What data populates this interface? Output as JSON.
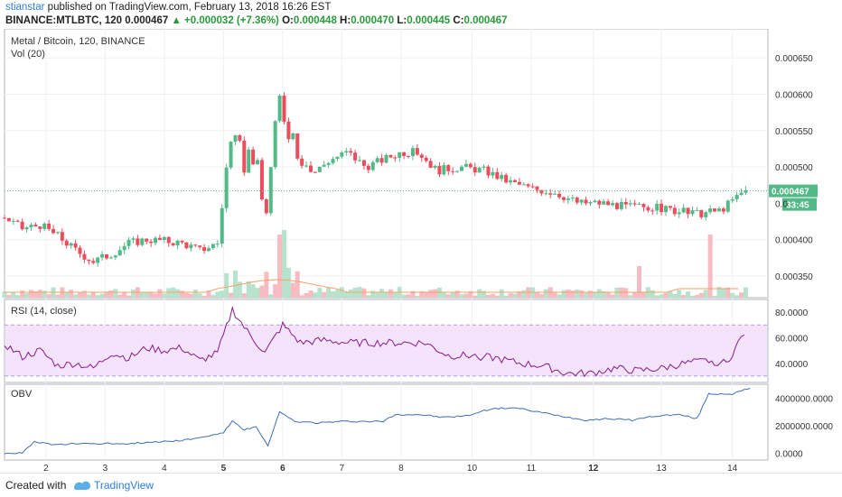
{
  "header": {
    "user": "stianstar",
    "published_text": "published on TradingView.com, February 13, 2018 16:26 EST",
    "symbol_line": "BINANCE:MTLBTC, 120",
    "last": "0.000467",
    "change": "+0.000032 (+7.36%)",
    "o_label": "O:",
    "o_val": "0.000448",
    "h_label": "H:",
    "h_val": "0.000470",
    "l_label": "L:",
    "l_val": "0.000445",
    "c_label": "C:",
    "c_val": "0.000467"
  },
  "main_panel": {
    "title": "Metal / Bitcoin, 120, BINANCE",
    "vol_label": "Vol (20)",
    "price_ticks": [
      "0.000650",
      "0.000600",
      "0.000550",
      "0.000500",
      "0.000400",
      "0.000350"
    ],
    "price_tag": "0.000467",
    "time_tag": "33:45"
  },
  "rsi_panel": {
    "label": "RSI (14, close)",
    "ticks": [
      "80.0000",
      "60.0000",
      "40.0000"
    ]
  },
  "obv_panel": {
    "label": "OBV",
    "ticks": [
      "4000000.0000",
      "2000000.0000",
      "0.0000"
    ]
  },
  "x_axis": {
    "ticks": [
      "2",
      "3",
      "4",
      "5",
      "6",
      "7",
      "8",
      "10",
      "11",
      "12",
      "12",
      "13",
      "14"
    ]
  },
  "footer": {
    "created_with": "Created with",
    "brand": "TradingView"
  },
  "colors": {
    "up": "#53b987",
    "down": "#eb4d5c",
    "rsi_line": "#8b1a8b",
    "rsi_band": "#f3e3fb",
    "obv_line": "#3d6fb4",
    "ma_line": "#f4a26b",
    "price_tag": "#53b987"
  },
  "chart_data": {
    "type": "candlestick",
    "x_domain": [
      1.3,
      14.2
    ],
    "price_range": [
      0.00032,
      0.00069
    ],
    "price_close_approx": [
      [
        1.3,
        0.00043
      ],
      [
        1.6,
        0.000415
      ],
      [
        1.9,
        0.00042
      ],
      [
        2.2,
        0.000405
      ],
      [
        2.5,
        0.000385
      ],
      [
        2.8,
        0.00037
      ],
      [
        3.1,
        0.00038
      ],
      [
        3.4,
        0.000395
      ],
      [
        3.7,
        0.0004
      ],
      [
        4.0,
        0.000398
      ],
      [
        4.3,
        0.000395
      ],
      [
        4.6,
        0.000385
      ],
      [
        4.9,
        0.000395
      ],
      [
        5.1,
        0.00053
      ],
      [
        5.3,
        0.00051
      ],
      [
        5.5,
        0.00052
      ],
      [
        5.7,
        0.00043
      ],
      [
        5.95,
        0.00059
      ],
      [
        6.2,
        0.00054
      ],
      [
        6.5,
        0.00049
      ],
      [
        6.8,
        0.00051
      ],
      [
        7.1,
        0.00052
      ],
      [
        7.4,
        0.0005
      ],
      [
        7.7,
        0.00051
      ],
      [
        8.0,
        0.00052
      ],
      [
        8.3,
        0.00052
      ],
      [
        8.6,
        0.000495
      ],
      [
        9.0,
        0.0005
      ],
      [
        9.4,
        0.000495
      ],
      [
        9.8,
        0.00048
      ],
      [
        10.2,
        0.00047
      ],
      [
        10.6,
        0.000465
      ],
      [
        11.0,
        0.00045
      ],
      [
        11.4,
        0.00045
      ],
      [
        11.8,
        0.000445
      ],
      [
        12.2,
        0.000445
      ],
      [
        12.6,
        0.00044
      ],
      [
        13.0,
        0.000435
      ],
      [
        13.4,
        0.00044
      ],
      [
        13.8,
        0.000467
      ]
    ],
    "rsi_range": [
      25,
      90
    ],
    "rsi_approx": [
      [
        1.3,
        55
      ],
      [
        1.6,
        45
      ],
      [
        1.9,
        50
      ],
      [
        2.2,
        38
      ],
      [
        2.5,
        40
      ],
      [
        2.8,
        36
      ],
      [
        3.1,
        48
      ],
      [
        3.4,
        44
      ],
      [
        3.7,
        52
      ],
      [
        4.0,
        50
      ],
      [
        4.3,
        52
      ],
      [
        4.6,
        42
      ],
      [
        4.9,
        48
      ],
      [
        5.15,
        82
      ],
      [
        5.4,
        65
      ],
      [
        5.7,
        48
      ],
      [
        6.0,
        70
      ],
      [
        6.3,
        56
      ],
      [
        6.7,
        58
      ],
      [
        7.1,
        56
      ],
      [
        7.5,
        56
      ],
      [
        8.0,
        56
      ],
      [
        8.4,
        56
      ],
      [
        8.8,
        46
      ],
      [
        9.2,
        46
      ],
      [
        9.6,
        44
      ],
      [
        10.0,
        40
      ],
      [
        10.4,
        38
      ],
      [
        10.8,
        32
      ],
      [
        11.2,
        32
      ],
      [
        11.6,
        36
      ],
      [
        12.0,
        34
      ],
      [
        12.4,
        36
      ],
      [
        12.8,
        40
      ],
      [
        13.2,
        42
      ],
      [
        13.5,
        40
      ],
      [
        13.8,
        64
      ]
    ],
    "obv_range": [
      -500000,
      5000000
    ],
    "obv_approx": [
      [
        1.3,
        0
      ],
      [
        1.6,
        0
      ],
      [
        1.8,
        800000
      ],
      [
        2.2,
        600000
      ],
      [
        2.6,
        700000
      ],
      [
        3.0,
        700000
      ],
      [
        3.4,
        700000
      ],
      [
        3.8,
        800000
      ],
      [
        4.2,
        900000
      ],
      [
        4.6,
        1100000
      ],
      [
        5.0,
        1500000
      ],
      [
        5.15,
        2300000
      ],
      [
        5.35,
        1700000
      ],
      [
        5.55,
        1900000
      ],
      [
        5.75,
        500000
      ],
      [
        5.95,
        3000000
      ],
      [
        6.2,
        2300000
      ],
      [
        6.6,
        2200000
      ],
      [
        7.0,
        2300000
      ],
      [
        7.4,
        2300000
      ],
      [
        7.7,
        2300000
      ],
      [
        7.9,
        2800000
      ],
      [
        8.3,
        2800000
      ],
      [
        8.7,
        2600000
      ],
      [
        9.1,
        2700000
      ],
      [
        9.5,
        3200000
      ],
      [
        9.9,
        3300000
      ],
      [
        10.3,
        3000000
      ],
      [
        10.7,
        2700000
      ],
      [
        11.1,
        2400000
      ],
      [
        11.5,
        2500000
      ],
      [
        11.9,
        2400000
      ],
      [
        12.3,
        2700000
      ],
      [
        12.7,
        2800000
      ],
      [
        13.0,
        2500000
      ],
      [
        13.2,
        4300000
      ],
      [
        13.6,
        4300000
      ],
      [
        13.9,
        4700000
      ]
    ]
  }
}
